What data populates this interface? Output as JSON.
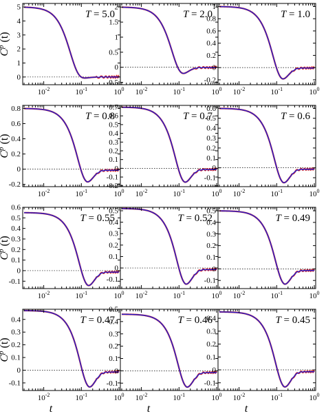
{
  "chart_data": {
    "type": "line",
    "xlabel": "t",
    "ylabel": {
      "main": "C",
      "superscript": "p",
      "suffix": "(t)"
    },
    "x_scale": "log",
    "xlim": [
      0.003,
      1.0
    ],
    "x_ticks": [
      {
        "value": 0.01,
        "base": "10",
        "exp": "-2"
      },
      {
        "value": 0.1,
        "base": "10",
        "exp": "-1"
      },
      {
        "value": 1.0,
        "base": "10",
        "exp": "0"
      }
    ],
    "zero_line": {
      "y": 0,
      "style": "dotted"
    },
    "series_colors": [
      "#d62020",
      "#2020d0"
    ],
    "panels": [
      {
        "label": "T = 5.0",
        "T": "5.0",
        "ylim": [
          -0.55,
          5.25
        ],
        "yticks": [
          0,
          1,
          2,
          3,
          4,
          5
        ],
        "ytick_labels": [
          "0",
          "1",
          "2",
          "3",
          "4",
          "5"
        ],
        "peak": 5.0,
        "min_t": 0.1,
        "min_val": -0.1,
        "tail_t": 0.45,
        "tail_val": 0.0
      },
      {
        "label": "T = 2.0",
        "T": "2.0",
        "ylim": [
          -0.58,
          2.12
        ],
        "yticks": [
          -0.5,
          0,
          0.5,
          1,
          1.5,
          2
        ],
        "ytick_labels": [
          "-0.5",
          "0",
          "0.5",
          "1",
          "1.5",
          "2"
        ],
        "peak": 2.0,
        "min_t": 0.12,
        "min_val": -0.23,
        "tail_t": 0.5,
        "tail_val": -0.03
      },
      {
        "label": "T = 1.0",
        "T": "1.0",
        "ylim": [
          -0.28,
          1.05
        ],
        "yticks": [
          -0.2,
          0,
          0.2,
          0.4,
          0.6,
          0.8,
          1
        ],
        "ytick_labels": [
          "-0.2",
          "0",
          "0.2",
          "0.4",
          "0.6",
          "0.8",
          "1"
        ],
        "peak": 1.0,
        "min_t": 0.14,
        "min_val": -0.2,
        "tail_t": 0.6,
        "tail_val": -0.02
      },
      {
        "label": "T = 0.8",
        "T": "0.8",
        "ylim": [
          -0.23,
          0.84
        ],
        "yticks": [
          -0.2,
          0,
          0.2,
          0.4,
          0.6,
          0.8
        ],
        "ytick_labels": [
          "-0.2",
          "0",
          "0.2",
          "0.4",
          "0.6",
          "0.8"
        ],
        "peak": 0.8,
        "min_t": 0.14,
        "min_val": -0.18,
        "tail_t": 0.5,
        "tail_val": -0.04
      },
      {
        "label": "T = 0.7",
        "T": "0.7",
        "ylim": [
          -0.21,
          0.72
        ],
        "yticks": [
          -0.2,
          -0.1,
          0,
          0.1,
          0.2,
          0.3,
          0.4,
          0.5,
          0.6,
          0.7
        ],
        "ytick_labels": [
          "-0.2",
          "-0.1",
          "0",
          "0.1",
          "0.2",
          "0.3",
          "0.4",
          "0.5",
          "0.6",
          "0.7"
        ],
        "peak": 0.7,
        "min_t": 0.14,
        "min_val": -0.17,
        "tail_t": 0.5,
        "tail_val": -0.04
      },
      {
        "label": "T = 0.6",
        "T": "0.6",
        "ylim": [
          -0.19,
          0.63
        ],
        "yticks": [
          -0.1,
          0,
          0.1,
          0.2,
          0.3,
          0.4,
          0.5,
          0.6
        ],
        "ytick_labels": [
          "-0.1",
          "0",
          "0.1",
          "0.2",
          "0.3",
          "0.4",
          "0.5",
          "0.6"
        ],
        "peak": 0.6,
        "min_t": 0.15,
        "min_val": -0.16,
        "tail_t": 0.55,
        "tail_val": -0.04
      },
      {
        "label": "T = 0.55",
        "T": "0.55",
        "ylim": [
          -0.17,
          0.6
        ],
        "yticks": [
          -0.1,
          0,
          0.1,
          0.2,
          0.3,
          0.4,
          0.5,
          0.6
        ],
        "ytick_labels": [
          "-0.1",
          "0",
          "0.1",
          "0.2",
          "0.3",
          "0.4",
          "0.5",
          "0.6"
        ],
        "peak": 0.55,
        "min_t": 0.15,
        "min_val": -0.15,
        "tail_t": 0.55,
        "tail_val": -0.04
      },
      {
        "label": "T = 0.52",
        "T": "0.52",
        "ylim": [
          -0.18,
          0.53
        ],
        "yticks": [
          -0.1,
          0,
          0.1,
          0.2,
          0.3,
          0.4,
          0.5
        ],
        "ytick_labels": [
          "-0.1",
          "0",
          "0.1",
          "0.2",
          "0.3",
          "0.4",
          "0.5"
        ],
        "peak": 0.52,
        "min_t": 0.15,
        "min_val": -0.15,
        "tail_t": 0.55,
        "tail_val": -0.04
      },
      {
        "label": "T = 0.49",
        "T": "0.49",
        "ylim": [
          -0.17,
          0.53
        ],
        "yticks": [
          -0.1,
          0,
          0.1,
          0.2,
          0.3,
          0.4,
          0.5
        ],
        "ytick_labels": [
          "-0.1",
          "0",
          "0.1",
          "0.2",
          "0.3",
          "0.4",
          "0.5"
        ],
        "peak": 0.5,
        "min_t": 0.16,
        "min_val": -0.14,
        "tail_t": 0.55,
        "tail_val": -0.04
      },
      {
        "label": "T = 0.47",
        "T": "0.47",
        "ylim": [
          -0.16,
          0.48
        ],
        "yticks": [
          -0.1,
          0,
          0.1,
          0.2,
          0.3,
          0.4
        ],
        "ytick_labels": [
          "-0.1",
          "0",
          "0.1",
          "0.2",
          "0.3",
          "0.4"
        ],
        "peak": 0.47,
        "min_t": 0.16,
        "min_val": -0.14,
        "tail_t": 0.55,
        "tail_val": -0.04
      },
      {
        "label": "T = 0.46",
        "T": "0.46",
        "ylim": [
          -0.16,
          0.5
        ],
        "yticks": [
          -0.1,
          0,
          0.1,
          0.2,
          0.3,
          0.4,
          0.5
        ],
        "ytick_labels": [
          "-0.1",
          "0",
          "0.1",
          "0.2",
          "0.3",
          "0.4",
          "0.5"
        ],
        "peak": 0.46,
        "min_t": 0.16,
        "min_val": -0.14,
        "tail_t": 0.55,
        "tail_val": -0.04
      },
      {
        "label": "T = 0.45",
        "T": "0.45",
        "ylim": [
          -0.16,
          0.47
        ],
        "yticks": [
          -0.1,
          0,
          0.1,
          0.2,
          0.3,
          0.4
        ],
        "ytick_labels": [
          "-0.1",
          "0",
          "0.1",
          "0.2",
          "0.3",
          "0.4"
        ],
        "peak": 0.45,
        "min_t": 0.16,
        "min_val": -0.14,
        "tail_t": 0.55,
        "tail_val": -0.04
      }
    ]
  }
}
